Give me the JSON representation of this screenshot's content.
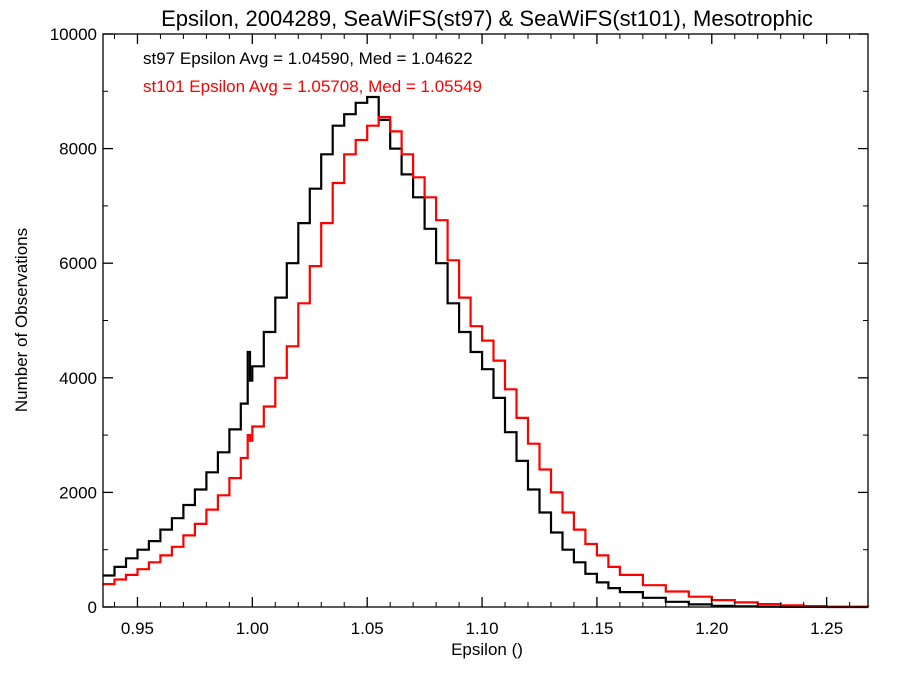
{
  "chart_data": {
    "type": "line",
    "title": "Epsilon, 2004289, SeaWiFS(st97) & SeaWiFS(st101), Mesotrophic",
    "xlabel": "Epsilon ()",
    "ylabel": "Number of Observations",
    "xlim": [
      0.935,
      1.268
    ],
    "ylim": [
      0,
      10000
    ],
    "x_ticks": [
      0.95,
      1.0,
      1.05,
      1.1,
      1.15,
      1.2,
      1.25
    ],
    "x_tick_labels": [
      "0.95",
      "1.00",
      "1.05",
      "1.10",
      "1.15",
      "1.20",
      "1.25"
    ],
    "y_ticks": [
      0,
      2000,
      4000,
      6000,
      8000,
      10000
    ],
    "y_tick_labels": [
      "0",
      "2000",
      "4000",
      "6000",
      "8000",
      "10000"
    ],
    "grid": false,
    "annotations": [
      {
        "text": "st97 Epsilon Avg = 1.04590, Med = 1.04622",
        "color": "#000000"
      },
      {
        "text": "st101 Epsilon Avg = 1.05708, Med = 1.05549",
        "color": "#ff0000"
      }
    ],
    "series": [
      {
        "color": "#000000",
        "step": true,
        "x": [
          0.935,
          0.94,
          0.945,
          0.95,
          0.955,
          0.96,
          0.965,
          0.97,
          0.975,
          0.98,
          0.985,
          0.99,
          0.995,
          0.998,
          0.999,
          1.0,
          1.005,
          1.01,
          1.015,
          1.02,
          1.025,
          1.03,
          1.035,
          1.04,
          1.045,
          1.05,
          1.055,
          1.06,
          1.065,
          1.07,
          1.075,
          1.08,
          1.085,
          1.09,
          1.095,
          1.1,
          1.105,
          1.11,
          1.115,
          1.12,
          1.125,
          1.13,
          1.135,
          1.14,
          1.145,
          1.15,
          1.155,
          1.16,
          1.17,
          1.18,
          1.19,
          1.2,
          1.21,
          1.22,
          1.23,
          1.24,
          1.25,
          1.268
        ],
        "values": [
          550,
          700,
          850,
          1000,
          1150,
          1350,
          1550,
          1780,
          2050,
          2350,
          2700,
          3100,
          3550,
          4450,
          3950,
          4200,
          4800,
          5400,
          6000,
          6700,
          7300,
          7900,
          8400,
          8600,
          8800,
          8900,
          8500,
          8000,
          7550,
          7150,
          6600,
          6000,
          5300,
          4800,
          4450,
          4150,
          3650,
          3050,
          2550,
          2050,
          1650,
          1300,
          1000,
          780,
          580,
          430,
          330,
          260,
          160,
          90,
          45,
          20,
          10,
          5,
          2,
          1,
          0,
          0
        ]
      },
      {
        "color": "#ff0000",
        "step": true,
        "x": [
          0.935,
          0.94,
          0.945,
          0.95,
          0.955,
          0.96,
          0.965,
          0.97,
          0.975,
          0.98,
          0.985,
          0.99,
          0.995,
          0.998,
          0.999,
          1.0,
          1.005,
          1.01,
          1.015,
          1.02,
          1.025,
          1.03,
          1.035,
          1.04,
          1.045,
          1.05,
          1.055,
          1.06,
          1.065,
          1.07,
          1.075,
          1.08,
          1.085,
          1.09,
          1.095,
          1.1,
          1.105,
          1.11,
          1.115,
          1.12,
          1.125,
          1.13,
          1.135,
          1.14,
          1.145,
          1.15,
          1.155,
          1.16,
          1.17,
          1.18,
          1.19,
          1.2,
          1.21,
          1.22,
          1.23,
          1.24,
          1.25,
          1.268
        ],
        "values": [
          400,
          480,
          560,
          660,
          780,
          900,
          1050,
          1250,
          1450,
          1700,
          1950,
          2250,
          2600,
          3000,
          2900,
          3150,
          3500,
          4000,
          4550,
          5300,
          5950,
          6700,
          7400,
          7900,
          8150,
          8400,
          8550,
          8300,
          7900,
          7500,
          7150,
          6750,
          6050,
          5400,
          4900,
          4650,
          4300,
          3800,
          3300,
          2850,
          2400,
          2000,
          1650,
          1350,
          1100,
          900,
          700,
          560,
          380,
          270,
          180,
          120,
          80,
          50,
          30,
          15,
          5,
          0
        ]
      }
    ]
  }
}
